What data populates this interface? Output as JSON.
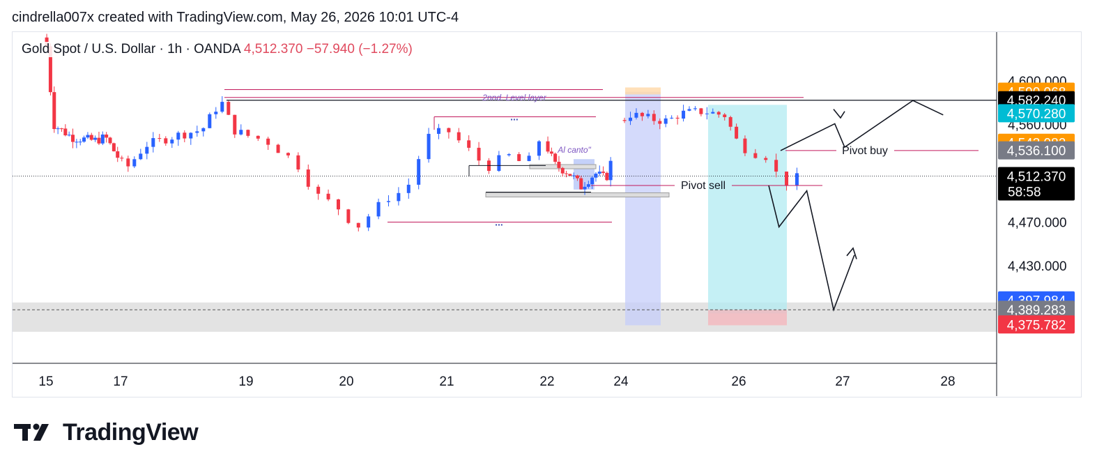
{
  "header": {
    "text": "cindrella007x created with TradingView.com, May 26, 2026 10:01 UTC-4"
  },
  "symbol": {
    "name": "Gold Spot / U.S. Dollar · 1h · OANDA",
    "last": "4,512.370",
    "change": "−57.940 (−1.27%)"
  },
  "brand": {
    "name": "TradingView"
  },
  "colors": {
    "up": "#2962ff",
    "down": "#f23645",
    "annot": "#c2185b",
    "price_tag": "#000000",
    "orange_tag": "#ff9800",
    "gray_tag": "#787b86",
    "blue_tag": "#2962ff",
    "red_tag": "#f23645",
    "cyan_tag": "#00bcd4",
    "target_zone": "#b2ebf2",
    "blue_zone": "#c5cefa",
    "support_zone": "#e0e0e0"
  },
  "chart_data": {
    "type": "candlestick",
    "title": "Gold Spot / U.S. Dollar · 1h · OANDA",
    "y_axis": {
      "ticks": [
        "4,600.000",
        "4,560.000",
        "4,470.000",
        "4,430.000"
      ],
      "tick_values": [
        4600,
        4560,
        4470,
        4430
      ],
      "range": [
        4340,
        4645
      ]
    },
    "x_axis": {
      "ticks": [
        "15",
        "17",
        "19",
        "20",
        "21",
        "22",
        "24",
        "26",
        "27",
        "28"
      ]
    },
    "price_tags": [
      {
        "value": 4590.068,
        "label": "4,590.068",
        "color": "orange_tag"
      },
      {
        "value": 4582.24,
        "label": "4,582.240",
        "color": "price_tag"
      },
      {
        "value": 4570.28,
        "label": "4,570.280",
        "color": "cyan_tag"
      },
      {
        "value": 4543.082,
        "label": "4,543.082",
        "color": "orange_tag"
      },
      {
        "value": 4536.1,
        "label": "4,536.100",
        "color": "gray_tag"
      },
      {
        "value": 4512.37,
        "label": "4,512.370",
        "sub": "58:58",
        "color": "price_tag"
      },
      {
        "value": 4397.984,
        "label": "4,397.984",
        "color": "blue_tag"
      },
      {
        "value": 4389.283,
        "label": "4,389.283",
        "color": "gray_tag"
      },
      {
        "value": 4375.782,
        "label": "4,375.782",
        "color": "red_tag"
      }
    ],
    "last_price": 4512.37,
    "annotations": {
      "level_layer": "2nnd. Level layer",
      "al_canto": "Al canto\"",
      "pivot_buy": "Pivot buy",
      "pivot_sell": "Pivot sell",
      "dots": "..."
    },
    "levels": {
      "level_layer": 4584.8,
      "resistance": 4582.24,
      "pivot_buy": 4535.9,
      "pivot_sell": 4503.7,
      "support": 4389.283,
      "support_zone": [
        4369.0,
        4396.0
      ],
      "range_high": 4522.1,
      "range_low": 4497.6
    },
    "path_projection": [
      [
        4524.0,
        4535.9
      ],
      [
        4531.7,
        4560.6
      ],
      [
        4533.1,
        4539.0
      ],
      [
        4542.8,
        4582.0
      ],
      [
        4547.1,
        4568.7
      ]
    ],
    "bearish_projection": [
      [
        4519.8,
        4503.7
      ],
      [
        4524.0,
        4465.6
      ],
      [
        4535.4,
        4498.9
      ],
      [
        4546.4,
        4389.283
      ],
      [
        4554.9,
        4439.7
      ]
    ]
  }
}
